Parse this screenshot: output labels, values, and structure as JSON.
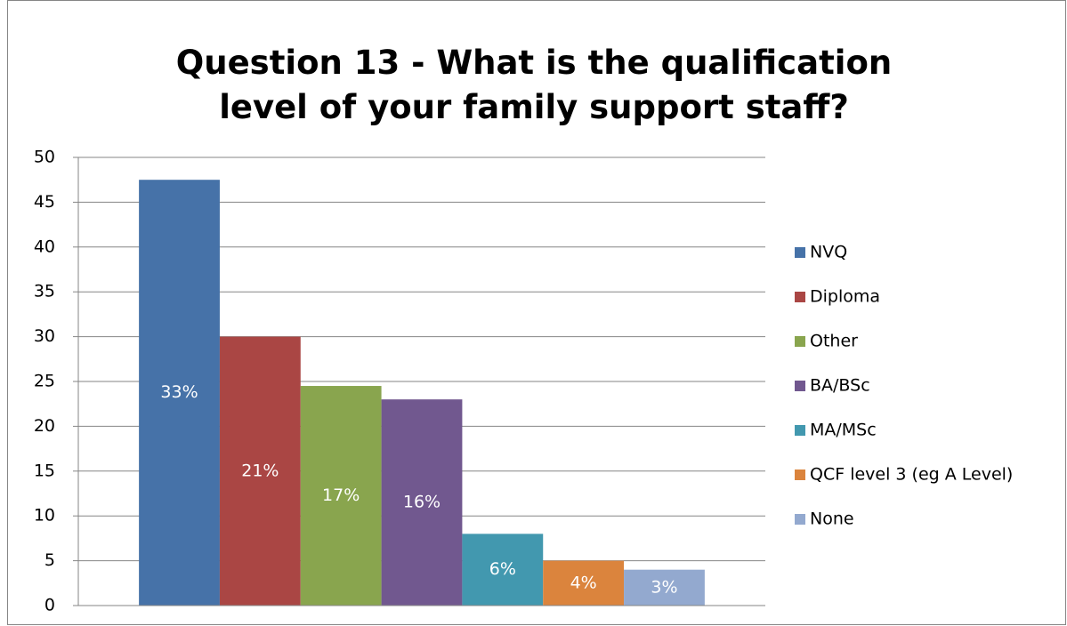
{
  "chart_data": {
    "type": "bar",
    "title": "Question 13 - What is the qualification level of your family support staff?",
    "series": [
      {
        "name": "NVQ",
        "color": "#4672a8",
        "values": [
          47.5
        ],
        "value_labels": [
          "33%"
        ]
      },
      {
        "name": "Diploma",
        "color": "#aa4644",
        "values": [
          30
        ],
        "value_labels": [
          "21%"
        ]
      },
      {
        "name": "Other",
        "color": "#89a54e",
        "values": [
          24.5
        ],
        "value_labels": [
          "17%"
        ]
      },
      {
        "name": "BA/BSc",
        "color": "#71588f",
        "values": [
          23
        ],
        "value_labels": [
          "16%"
        ]
      },
      {
        "name": "MA/MSc",
        "color": "#4298af",
        "values": [
          8
        ],
        "value_labels": [
          "6%"
        ]
      },
      {
        "name": "QCF level 3 (eg A Level)",
        "color": "#db843d",
        "values": [
          5
        ],
        "value_labels": [
          "4%"
        ]
      },
      {
        "name": "None",
        "color": "#93a9cf",
        "values": [
          4
        ],
        "value_labels": [
          "3%"
        ]
      }
    ],
    "ylim": [
      0,
      50
    ],
    "yticks": [
      0,
      5,
      10,
      15,
      20,
      25,
      30,
      35,
      40,
      45,
      50
    ],
    "grid": true,
    "legend": "right"
  }
}
